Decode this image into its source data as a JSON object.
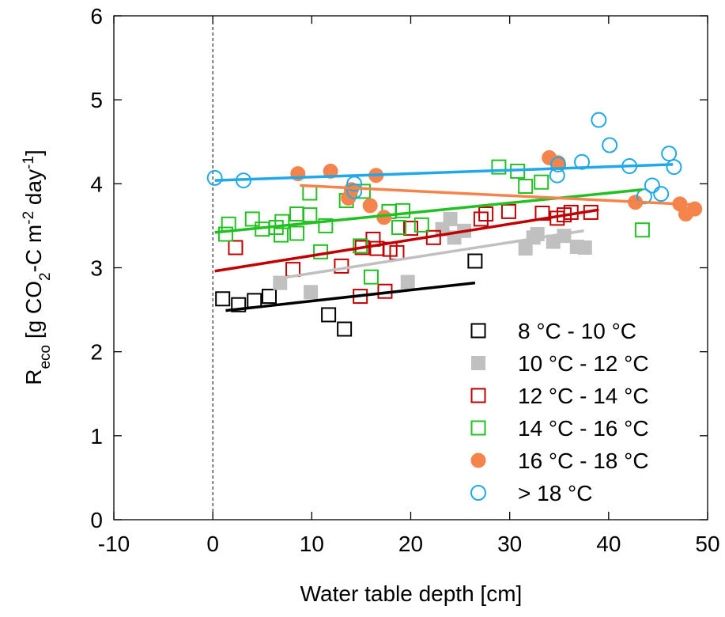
{
  "chart_data": {
    "type": "scatter",
    "xlabel": "Water table depth [cm]",
    "ylabel": [
      {
        "text": "R"
      },
      {
        "text": "eco",
        "shift": "sub"
      },
      {
        "text": " [g CO"
      },
      {
        "text": "2",
        "shift": "sub"
      },
      {
        "text": "-C m"
      },
      {
        "text": "-2",
        "shift": "super"
      },
      {
        "text": " day"
      },
      {
        "text": "-1",
        "shift": "super"
      },
      {
        "text": "]"
      }
    ],
    "xlim": [
      -10,
      50
    ],
    "xticks": [
      -10,
      0,
      10,
      20,
      30,
      40,
      50
    ],
    "ylim": [
      0,
      6
    ],
    "yticks": [
      0,
      1,
      2,
      3,
      4,
      5,
      6
    ],
    "grid": false,
    "legend": "lower right",
    "reference_line": {
      "x": 0,
      "style": "dashed"
    },
    "series": [
      {
        "name": "8 °C - 10 °C",
        "color": "#000000",
        "marker": "square",
        "filled": false,
        "x": [
          1.0,
          2.6,
          4.2,
          5.7,
          11.7,
          13.3,
          26.5
        ],
        "values": [
          2.63,
          2.56,
          2.61,
          2.66,
          2.44,
          2.27,
          3.08
        ],
        "fit": {
          "x": [
            1.3,
            26.5
          ],
          "y": [
            2.49,
            2.82
          ]
        }
      },
      {
        "name": "10 °C - 12 °C",
        "color": "#c0c0c0",
        "marker": "square",
        "filled": true,
        "x": [
          6.8,
          9.9,
          19.7,
          23.2,
          24.0,
          24.4,
          25.4,
          31.6,
          32.4,
          32.8,
          34.4,
          35.5,
          36.8,
          37.6
        ],
        "values": [
          2.82,
          2.71,
          2.83,
          3.46,
          3.58,
          3.36,
          3.44,
          3.23,
          3.36,
          3.4,
          3.31,
          3.38,
          3.25,
          3.24
        ],
        "fit": {
          "x": [
            6.5,
            37.5
          ],
          "y": [
            2.87,
            3.44
          ]
        }
      },
      {
        "name": "12 °C - 14 °C",
        "color": "#c00000",
        "marker": "square",
        "filled": false,
        "x": [
          2.3,
          8.1,
          13.0,
          14.9,
          15.1,
          16.2,
          16.6,
          17.4,
          17.9,
          18.6,
          20.0,
          22.3,
          27.1,
          27.6,
          29.9,
          33.3,
          34.8,
          35.5,
          36.2,
          38.2
        ],
        "values": [
          3.24,
          2.98,
          3.02,
          2.66,
          3.24,
          3.34,
          3.23,
          2.72,
          3.22,
          3.18,
          3.47,
          3.36,
          3.58,
          3.64,
          3.67,
          3.65,
          3.59,
          3.63,
          3.66,
          3.66
        ],
        "fit": {
          "x": [
            0.2,
            39.0
          ],
          "y": [
            2.96,
            3.69
          ]
        }
      },
      {
        "name": "14 °C - 16 °C",
        "color": "#22c022",
        "marker": "square",
        "filled": false,
        "x": [
          1.3,
          1.6,
          4.0,
          5.0,
          6.4,
          6.9,
          7.0,
          8.5,
          8.5,
          9.8,
          9.8,
          11.4,
          10.9,
          13.5,
          14.9,
          15.2,
          16.0,
          17.8,
          18.8,
          19.2,
          21.1,
          28.9,
          30.8,
          31.6,
          33.2,
          43.4
        ],
        "values": [
          3.4,
          3.52,
          3.58,
          3.46,
          3.48,
          3.39,
          3.55,
          3.41,
          3.64,
          3.89,
          3.63,
          3.5,
          3.19,
          3.8,
          3.26,
          3.91,
          2.89,
          3.67,
          3.48,
          3.68,
          3.51,
          4.2,
          4.15,
          3.97,
          4.02,
          3.45
        ],
        "fit": {
          "x": [
            0.2,
            43.4
          ],
          "y": [
            3.42,
            3.93
          ]
        }
      },
      {
        "name": "16 °C - 18 °C",
        "color": "#f4844c",
        "marker": "circle",
        "filled": true,
        "x": [
          8.6,
          11.9,
          13.7,
          14.0,
          15.9,
          16.5,
          17.3,
          34.0,
          34.9,
          42.7,
          47.2,
          47.8,
          48.7
        ],
        "values": [
          4.12,
          4.15,
          3.83,
          3.93,
          3.74,
          4.1,
          3.6,
          4.31,
          4.25,
          3.78,
          3.76,
          3.64,
          3.7
        ],
        "fit": {
          "x": [
            8.8,
            48.8
          ],
          "y": [
            3.98,
            3.75
          ]
        }
      },
      {
        "name": "> 18 °C",
        "color": "#20a8e8",
        "marker": "circle",
        "filled": false,
        "x": [
          0.2,
          3.1,
          14.3,
          14.3,
          34.9,
          34.8,
          37.3,
          40.1,
          39.0,
          42.1,
          43.6,
          44.4,
          45.3,
          46.1,
          46.6
        ],
        "values": [
          4.07,
          4.04,
          4.0,
          3.91,
          4.23,
          4.1,
          4.26,
          4.46,
          4.76,
          4.21,
          3.85,
          3.98,
          3.88,
          4.36,
          4.2
        ],
        "fit": {
          "x": [
            0.2,
            46.5
          ],
          "y": [
            4.04,
            4.23
          ]
        }
      }
    ]
  }
}
